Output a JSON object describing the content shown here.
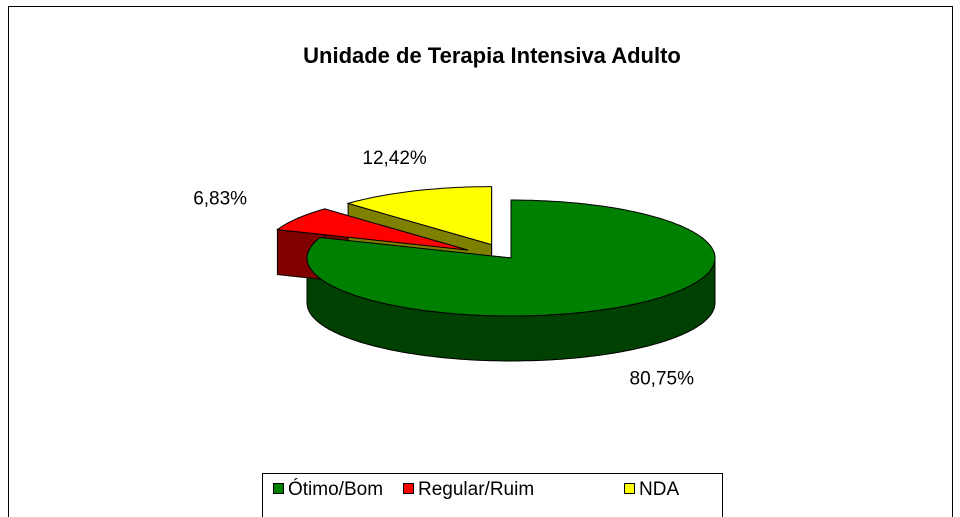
{
  "chart_data": {
    "type": "pie",
    "title": "Unidade de Terapia Intensiva Adulto",
    "categories": [
      "Ótimo/Bom",
      "Regular/Ruim",
      "NDA"
    ],
    "values": [
      80.75,
      6.83,
      12.42
    ],
    "value_labels": [
      "80,75%",
      "6,83%",
      "12,42%"
    ],
    "colors": [
      "#008000",
      "#ff0000",
      "#ffff00"
    ],
    "side_colors": [
      "#004000",
      "#800000",
      "#808000"
    ],
    "exploded": [
      false,
      true,
      true
    ],
    "legend": "bottom"
  }
}
